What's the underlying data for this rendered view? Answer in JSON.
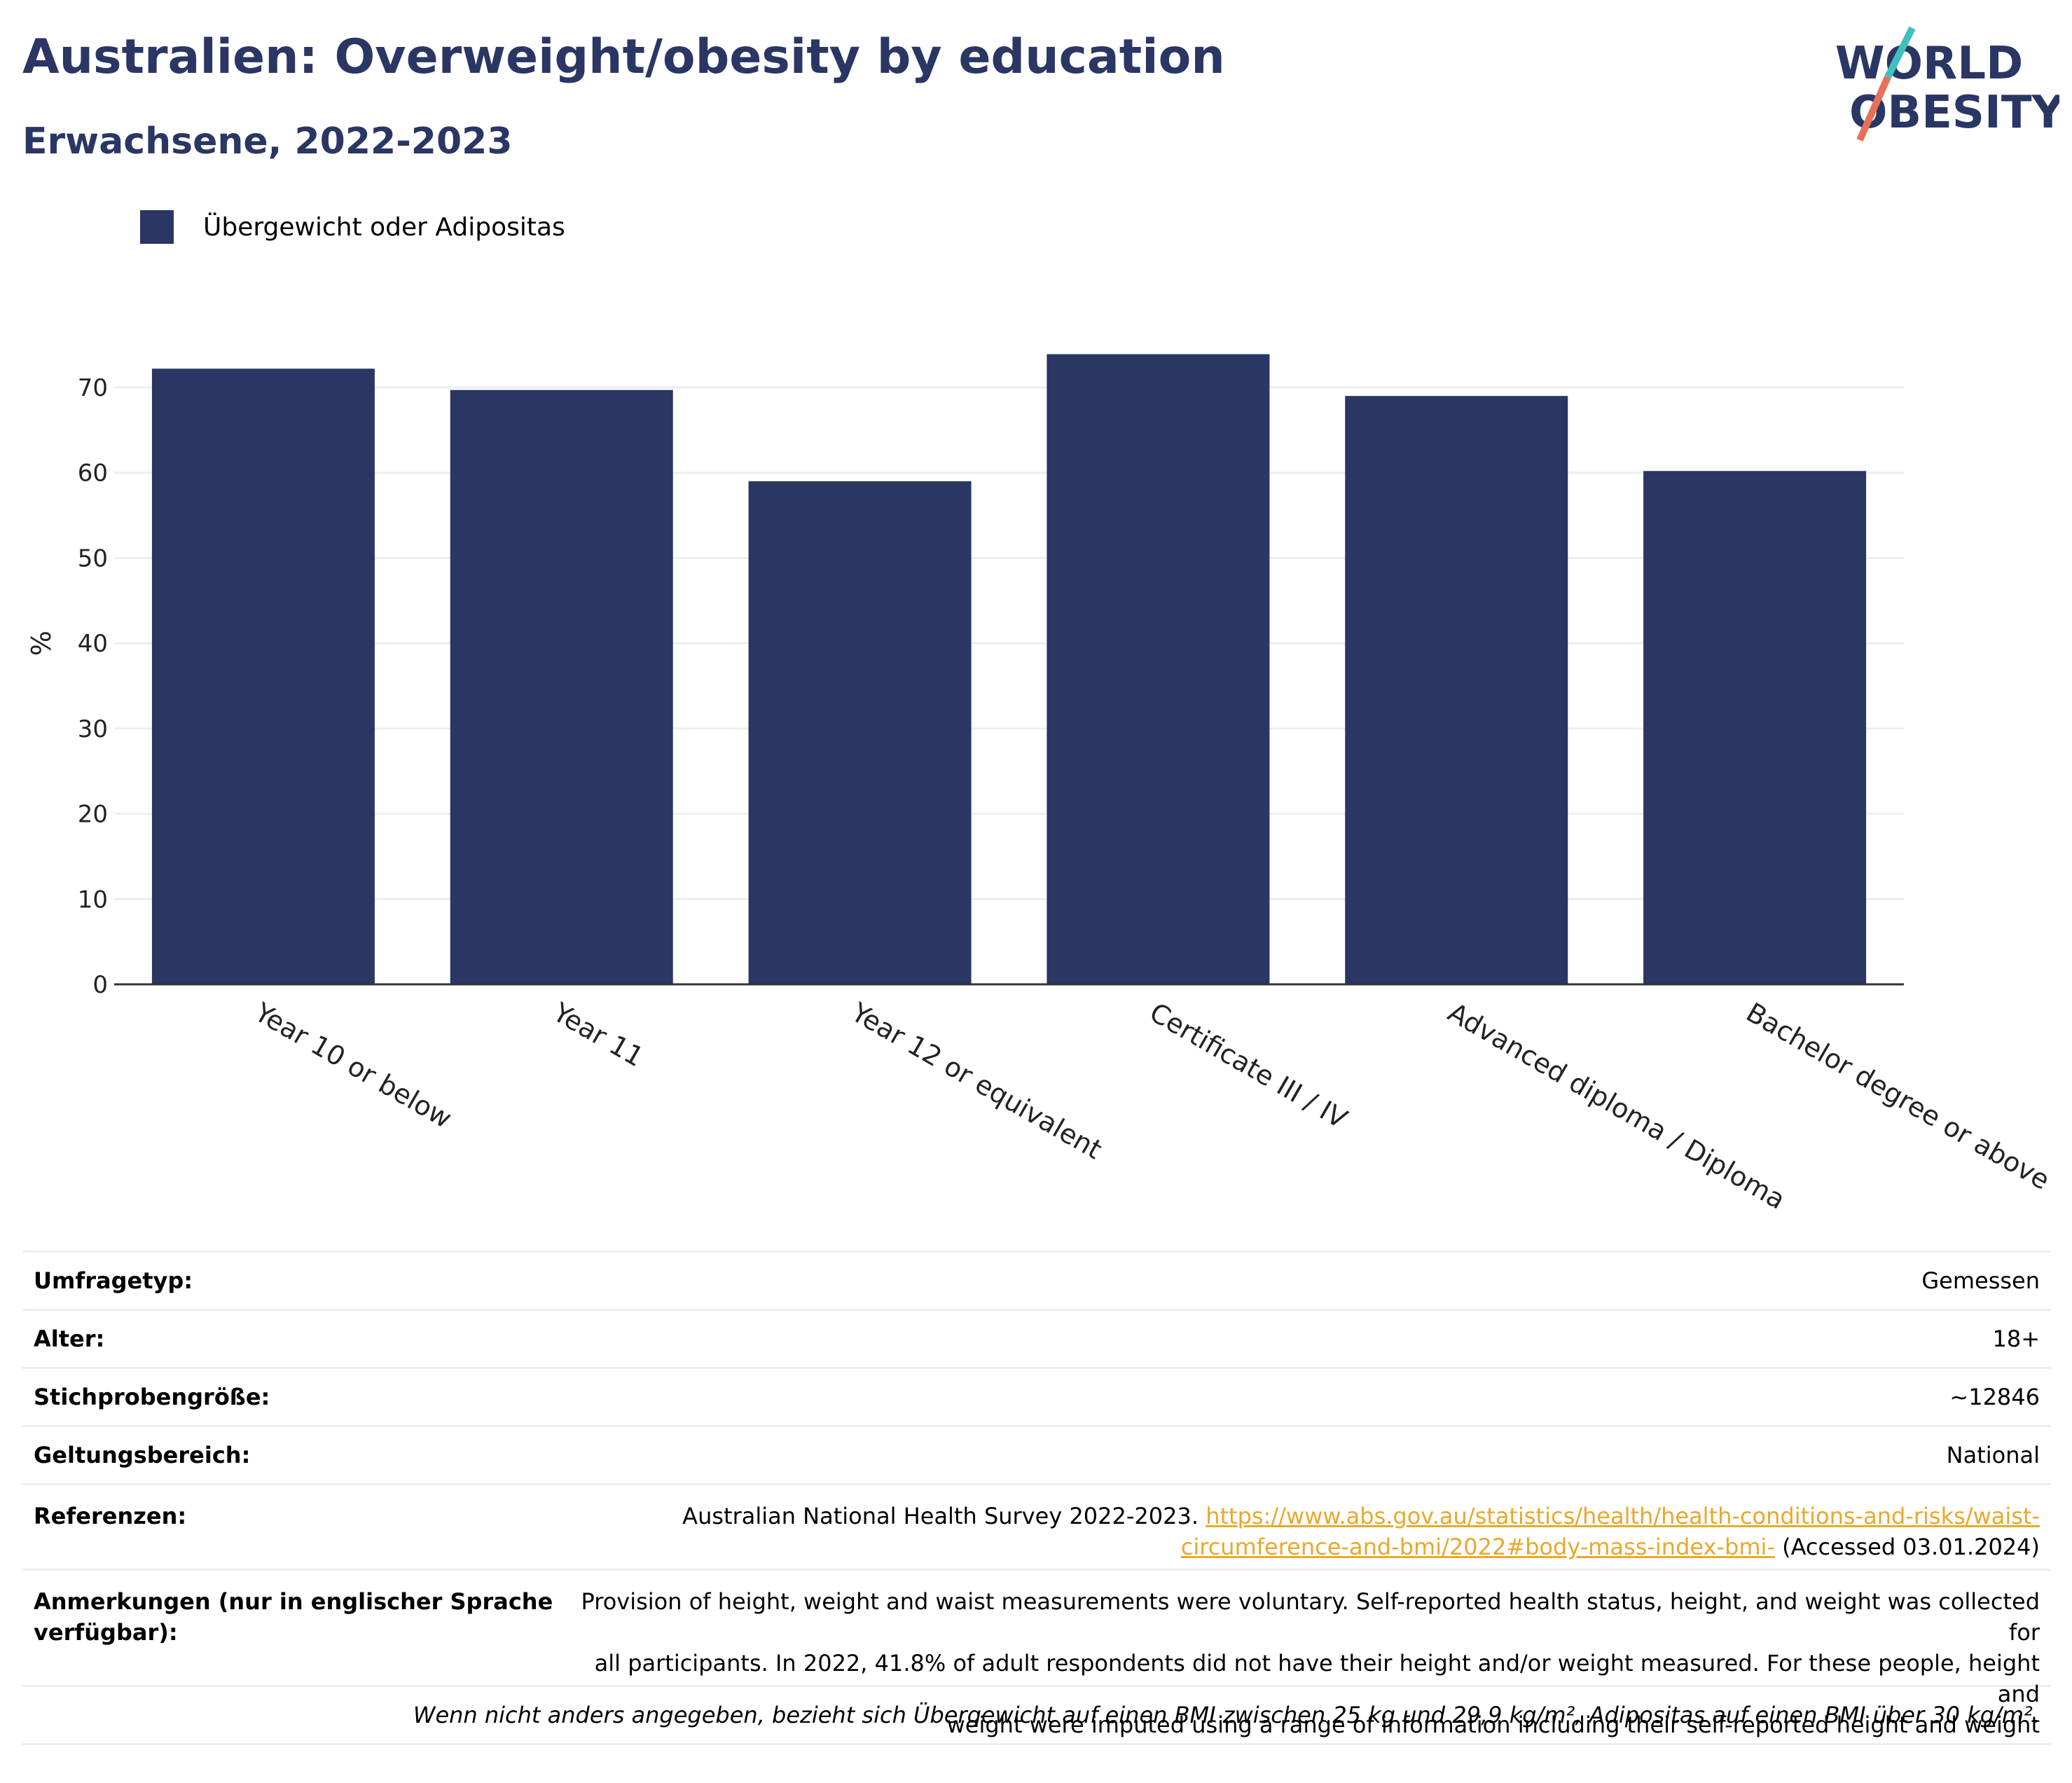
{
  "header": {
    "title": "Australien: Overweight/obesity by education",
    "subtitle": "Erwachsene, 2022-2023",
    "logo_line1": "WORLD",
    "logo_line2": "OBESITY"
  },
  "colors": {
    "bar": "#2a3663",
    "title": "#2a3663",
    "logo_teal": "#3fbfbf",
    "logo_coral": "#e8705a",
    "link": "#e9a82b",
    "grid": "#eceef2"
  },
  "chart_data": {
    "type": "bar",
    "categories": [
      "Year 10 or below",
      "Year 11",
      "Year 12 or equivalent",
      "Certificate III / IV",
      "Advanced diploma / Diploma",
      "Bachelor degree or above"
    ],
    "series": [
      {
        "name": "Übergewicht oder Adipositas",
        "values": [
          72.2,
          69.7,
          59.0,
          73.9,
          69.0,
          60.2
        ]
      }
    ],
    "ylabel": "%",
    "xlabel": "",
    "ylim": [
      0,
      75
    ],
    "yticks": [
      0,
      10,
      20,
      30,
      40,
      50,
      60,
      70
    ],
    "grid": true,
    "legend": "top-left"
  },
  "meta": {
    "survey_type_label": "Umfragetyp:",
    "survey_type_value": "Gemessen",
    "age_label": "Alter:",
    "age_value": "18+",
    "sample_label": "Stichprobengröße:",
    "sample_value": "~12846",
    "scope_label": "Geltungsbereich:",
    "scope_value": "National",
    "refs_label": "Referenzen:",
    "refs_text": "Australian National Health Survey 2022-2023.",
    "refs_link_1": "https://www.abs.gov.au/statistics/health/health-conditions-and-risks/waist-",
    "refs_link_2": "circumference-and-bmi/2022#body-mass-index-bmi-",
    "refs_accessed": "(Accessed 03.01.2024)",
    "notes_label_1": "Anmerkungen (nur in englischer Sprache",
    "notes_label_2": "verfügbar):",
    "notes_1": "Provision of height, weight and waist measurements were voluntary. Self-reported health status, height, and weight was collected for",
    "notes_2": "all participants. In 2022, 41.8% of adult respondents did not have their height and/or weight measured. For these people, height and",
    "notes_3": "weight were imputed using a range of information including their self-reported height and weight",
    "footnote": "Wenn nicht anders angegeben, bezieht sich Übergewicht auf einen BMI zwischen 25 kg und 29,9 kg/m², Adipositas auf einen BMI über 30 kg/m²."
  }
}
